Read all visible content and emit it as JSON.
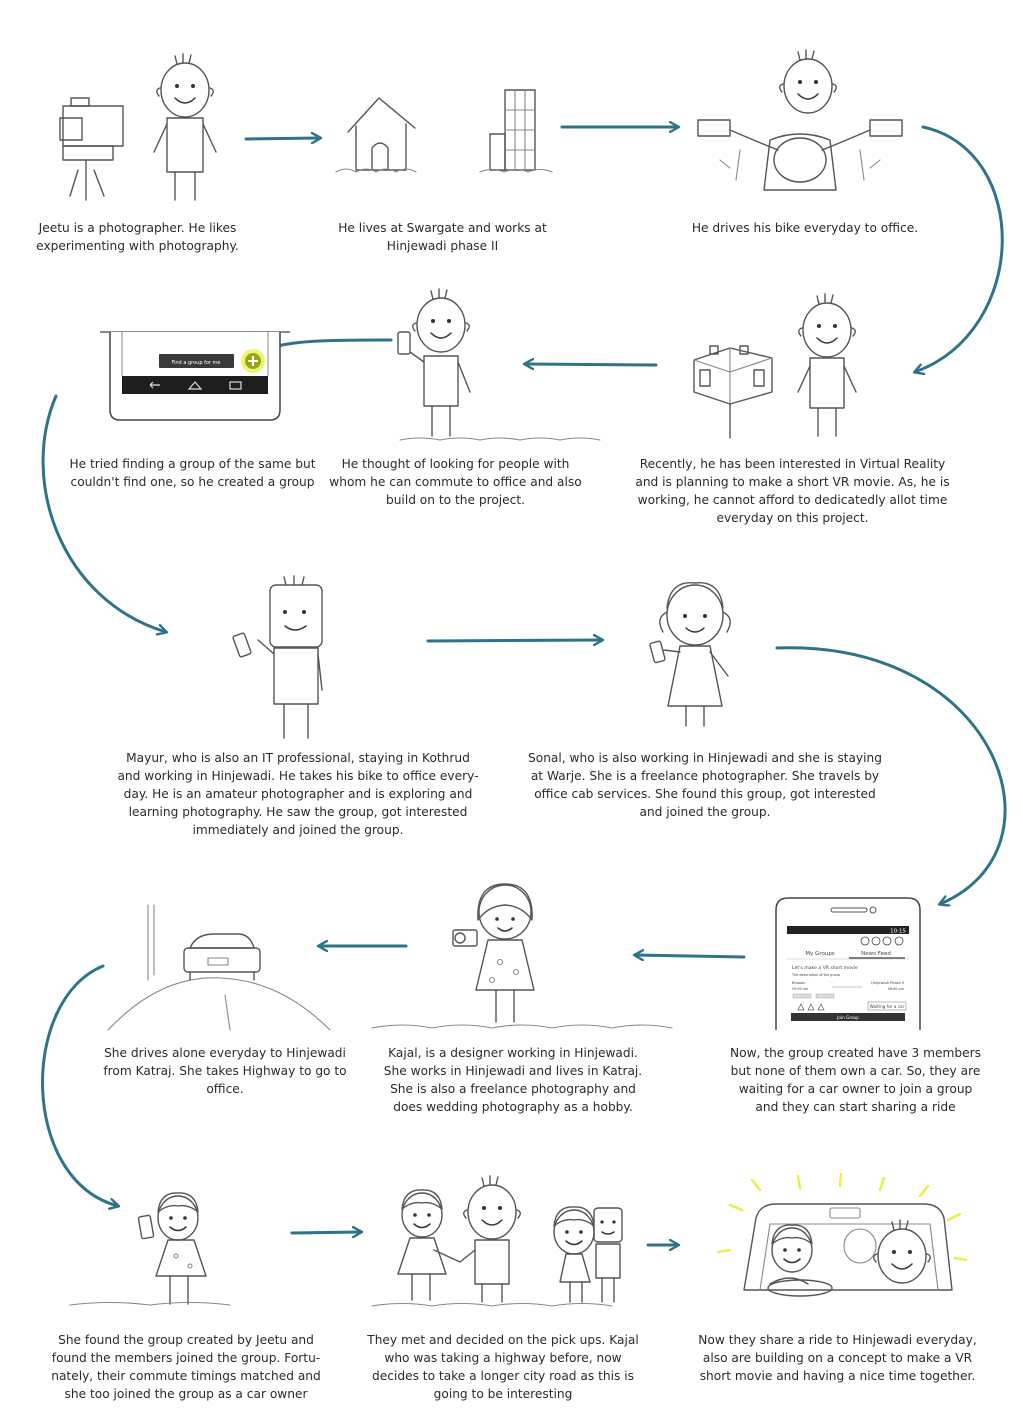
{
  "colors": {
    "arrow": "#2f7387",
    "sketch": "#555555",
    "highlight": "#e8ec3a",
    "sun_rays": "#ecef3c"
  },
  "panels": [
    {
      "id": "p1",
      "caption": "Jeetu is a photographer. He likes\nexperimenting with photography."
    },
    {
      "id": "p2",
      "caption": "He lives at Swargate and works at\nHinjewadi phase II"
    },
    {
      "id": "p3",
      "caption": "He drives his bike everyday to office."
    },
    {
      "id": "p4",
      "caption": "Recently, he has been interested in Virtual Reality\nand is planning to make a short VR movie. As, he is\nworking, he cannot afford to dedicatedly allot time\neveryday on this project."
    },
    {
      "id": "p5",
      "caption": "He thought of looking for people with\nwhom he can commute to office and also\nbuild on to the project."
    },
    {
      "id": "p6",
      "caption": "He tried finding a group of the same but\ncouldn't find one, so he created a group"
    },
    {
      "id": "p7",
      "caption": "Mayur, who is also an IT professional, staying in Kothrud\nand working in Hinjewadi. He takes his bike to office every-\nday. He is an amateur photographer and is exploring and\nlearning photography. He saw the group, got interested\nimmediately and joined the group."
    },
    {
      "id": "p8",
      "caption": "Sonal, who is also working in Hinjewadi and she is staying\nat Warje. She is a freelance photographer. She travels by\noffice cab services. She found this group, got interested\nand joined the group."
    },
    {
      "id": "p9",
      "caption": "Now, the group created have 3 members\nbut none of them own a car. So, they are\nwaiting for a car owner to join a group\nand they can start sharing a ride"
    },
    {
      "id": "p10",
      "caption": "Kajal, is a designer working in Hinjewadi.\nShe works in Hinjewadi and lives in Katraj.\nShe is also a freelance photography and\ndoes wedding photography as a hobby."
    },
    {
      "id": "p11",
      "caption": "She drives alone everyday to Hinjewadi\nfrom Katraj. She takes Highway to go to\noffice."
    },
    {
      "id": "p12",
      "caption": "She found the group created by Jeetu and\nfound the members joined the group. Fortu-\nnately, their commute timings matched and\nshe too joined the group as a car owner"
    },
    {
      "id": "p13",
      "caption": "They met and decided on the pick ups. Kajal\nwho was taking a highway before, now\ndecides to take a longer city road as this is\ngoing to be interesting"
    },
    {
      "id": "p14",
      "caption": "Now they share a ride to Hinjewadi everyday,\nalso are building on a concept to make a VR\nshort movie and having a nice time together."
    }
  ],
  "phone_ui_small": {
    "button_label": "Find a group for me"
  },
  "phone_ui_large": {
    "time": "10:15",
    "tab_my_groups": "My Groups",
    "tab_news_feed": "News Feed",
    "post_title": "Let's make a VR short movie",
    "post_sub": "The description of the group",
    "from_label": "Bhosari",
    "to_label": "Hinjewadi Phase II",
    "time_from": "09:00 am",
    "time_to": "06:00 pm",
    "waiting_label": "Waiting for a car",
    "join_button": "Join Group"
  }
}
